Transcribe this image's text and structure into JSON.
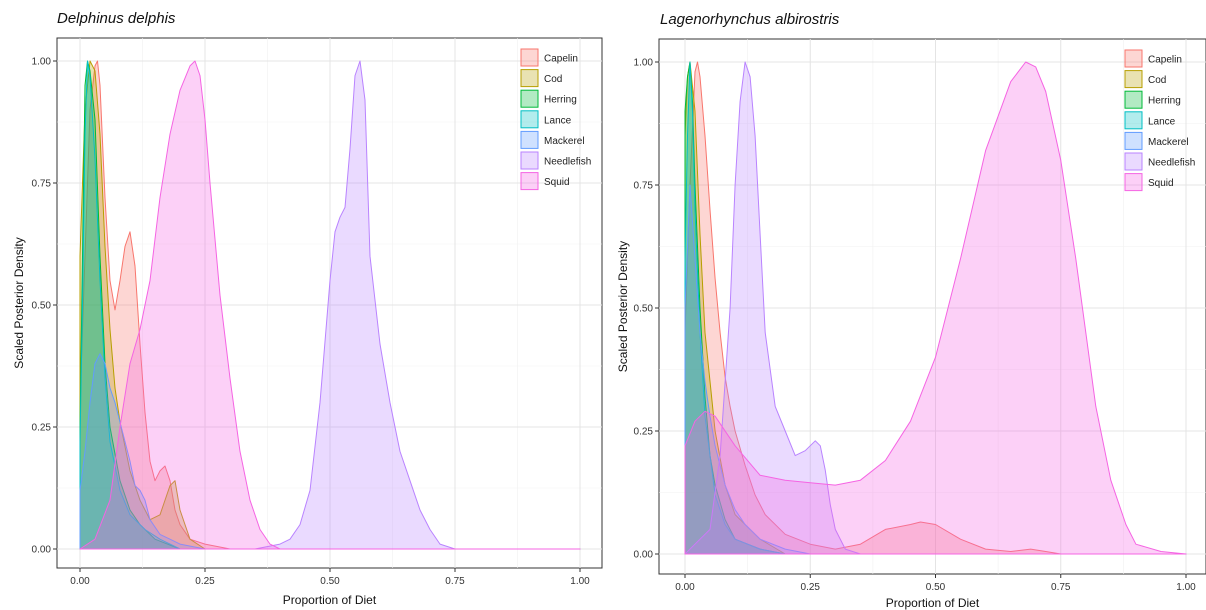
{
  "chart_data": [
    {
      "type": "area",
      "title": "Delphinus delphis",
      "xlabel": "Proportion of Diet",
      "ylabel": "Scaled Posterior Density",
      "xlim": [
        0,
        1
      ],
      "ylim": [
        0,
        1
      ],
      "xticks": [
        "0.00",
        "0.25",
        "0.50",
        "0.75",
        "1.00"
      ],
      "yticks": [
        "0.00",
        "0.25",
        "0.50",
        "0.75",
        "1.00"
      ],
      "grid": true,
      "legend": "top-right",
      "series": [
        {
          "name": "Capelin",
          "color": "#F8766D",
          "x": [
            0,
            0.01,
            0.02,
            0.03,
            0.035,
            0.04,
            0.05,
            0.06,
            0.07,
            0.08,
            0.09,
            0.1,
            0.11,
            0.12,
            0.13,
            0.14,
            0.15,
            0.16,
            0.17,
            0.18,
            0.19,
            0.2,
            0.22,
            0.25,
            0.3,
            1.0
          ],
          "y": [
            0.3,
            0.6,
            0.9,
            0.99,
            1.0,
            0.95,
            0.72,
            0.55,
            0.49,
            0.55,
            0.62,
            0.65,
            0.58,
            0.42,
            0.28,
            0.18,
            0.14,
            0.16,
            0.17,
            0.14,
            0.08,
            0.05,
            0.02,
            0.01,
            0.0,
            0.0
          ]
        },
        {
          "name": "Cod",
          "color": "#B79F00",
          "x": [
            0,
            0.01,
            0.02,
            0.03,
            0.04,
            0.05,
            0.06,
            0.07,
            0.08,
            0.1,
            0.12,
            0.14,
            0.16,
            0.18,
            0.19,
            0.2,
            0.22,
            0.25,
            1.0
          ],
          "y": [
            0.6,
            0.9,
            1.0,
            0.98,
            0.85,
            0.62,
            0.45,
            0.33,
            0.26,
            0.16,
            0.1,
            0.06,
            0.07,
            0.13,
            0.14,
            0.08,
            0.02,
            0.0,
            0.0
          ]
        },
        {
          "name": "Herring",
          "color": "#00BA38",
          "x": [
            0,
            0.005,
            0.01,
            0.015,
            0.02,
            0.03,
            0.04,
            0.05,
            0.06,
            0.08,
            0.1,
            0.12,
            0.15,
            0.2,
            1.0
          ],
          "y": [
            0.25,
            0.6,
            0.95,
            1.0,
            0.98,
            0.88,
            0.6,
            0.38,
            0.25,
            0.14,
            0.08,
            0.05,
            0.02,
            0.0,
            0.0
          ]
        },
        {
          "name": "Lance",
          "color": "#00BFC4",
          "x": [
            0,
            0.005,
            0.01,
            0.015,
            0.02,
            0.03,
            0.04,
            0.05,
            0.06,
            0.08,
            0.1,
            0.13,
            0.16,
            0.2,
            1.0
          ],
          "y": [
            0.22,
            0.5,
            0.85,
            1.0,
            0.97,
            0.8,
            0.55,
            0.35,
            0.22,
            0.12,
            0.07,
            0.04,
            0.02,
            0.0,
            0.0
          ]
        },
        {
          "name": "Mackerel",
          "color": "#619CFF",
          "x": [
            0,
            0.01,
            0.02,
            0.03,
            0.04,
            0.05,
            0.06,
            0.07,
            0.08,
            0.09,
            0.1,
            0.11,
            0.12,
            0.13,
            0.14,
            0.16,
            0.18,
            0.2,
            0.25,
            1.0
          ],
          "y": [
            0.12,
            0.2,
            0.3,
            0.38,
            0.4,
            0.38,
            0.33,
            0.3,
            0.26,
            0.22,
            0.18,
            0.13,
            0.12,
            0.1,
            0.06,
            0.03,
            0.02,
            0.01,
            0.0,
            0.0
          ]
        },
        {
          "name": "Needlefish",
          "color": "#B983FF",
          "x": [
            0,
            0.35,
            0.4,
            0.42,
            0.44,
            0.46,
            0.48,
            0.5,
            0.51,
            0.52,
            0.53,
            0.54,
            0.55,
            0.56,
            0.57,
            0.58,
            0.6,
            0.62,
            0.64,
            0.66,
            0.68,
            0.7,
            0.72,
            0.75,
            1.0
          ],
          "y": [
            0.0,
            0.0,
            0.01,
            0.02,
            0.05,
            0.12,
            0.3,
            0.55,
            0.65,
            0.68,
            0.7,
            0.82,
            0.97,
            1.0,
            0.92,
            0.6,
            0.42,
            0.3,
            0.2,
            0.14,
            0.08,
            0.04,
            0.01,
            0.0,
            0.0
          ]
        },
        {
          "name": "Squid",
          "color": "#F564E3",
          "x": [
            0,
            0.03,
            0.06,
            0.08,
            0.1,
            0.12,
            0.14,
            0.16,
            0.18,
            0.2,
            0.22,
            0.23,
            0.24,
            0.25,
            0.26,
            0.28,
            0.3,
            0.32,
            0.34,
            0.36,
            0.38,
            0.4,
            1.0
          ],
          "y": [
            0.0,
            0.02,
            0.1,
            0.25,
            0.38,
            0.45,
            0.55,
            0.72,
            0.85,
            0.94,
            0.99,
            1.0,
            0.97,
            0.88,
            0.75,
            0.52,
            0.35,
            0.2,
            0.1,
            0.04,
            0.01,
            0.0,
            0.0
          ]
        }
      ]
    },
    {
      "type": "area",
      "title": "Lagenorhynchus albirostris",
      "xlabel": "Proportion of Diet",
      "ylabel": "Scaled Posterior Density",
      "xlim": [
        0,
        1
      ],
      "ylim": [
        0,
        1
      ],
      "xticks": [
        "0.00",
        "0.25",
        "0.50",
        "0.75",
        "1.00"
      ],
      "yticks": [
        "0.00",
        "0.25",
        "0.50",
        "0.75",
        "1.00"
      ],
      "grid": true,
      "legend": "top-right",
      "series": [
        {
          "name": "Capelin",
          "color": "#F8766D",
          "x": [
            0,
            0.01,
            0.02,
            0.025,
            0.03,
            0.04,
            0.05,
            0.06,
            0.07,
            0.08,
            0.09,
            0.1,
            0.12,
            0.14,
            0.16,
            0.2,
            0.25,
            0.3,
            0.35,
            0.4,
            0.45,
            0.47,
            0.5,
            0.55,
            0.6,
            0.65,
            0.69,
            0.72,
            0.75,
            1.0
          ],
          "y": [
            0.45,
            0.75,
            0.98,
            1.0,
            0.97,
            0.85,
            0.7,
            0.56,
            0.45,
            0.36,
            0.3,
            0.25,
            0.18,
            0.12,
            0.08,
            0.04,
            0.02,
            0.01,
            0.02,
            0.05,
            0.06,
            0.065,
            0.06,
            0.03,
            0.01,
            0.005,
            0.01,
            0.005,
            0.0,
            0.0
          ]
        },
        {
          "name": "Cod",
          "color": "#B79F00",
          "x": [
            0,
            0.005,
            0.01,
            0.02,
            0.03,
            0.04,
            0.06,
            0.08,
            0.1,
            0.15,
            0.2,
            1.0
          ],
          "y": [
            0.85,
            0.97,
            1.0,
            0.9,
            0.65,
            0.45,
            0.25,
            0.14,
            0.08,
            0.03,
            0.0,
            0.0
          ]
        },
        {
          "name": "Herring",
          "color": "#00BA38",
          "x": [
            0,
            0.005,
            0.01,
            0.015,
            0.02,
            0.03,
            0.04,
            0.05,
            0.06,
            0.08,
            0.1,
            0.15,
            0.2,
            1.0
          ],
          "y": [
            0.9,
            0.97,
            1.0,
            0.92,
            0.75,
            0.5,
            0.32,
            0.2,
            0.14,
            0.07,
            0.03,
            0.01,
            0.0,
            0.0
          ]
        },
        {
          "name": "Lance",
          "color": "#00BFC4",
          "x": [
            0,
            0.005,
            0.01,
            0.015,
            0.02,
            0.03,
            0.04,
            0.06,
            0.08,
            0.1,
            0.15,
            0.2,
            1.0
          ],
          "y": [
            0.6,
            0.85,
            1.0,
            0.9,
            0.7,
            0.45,
            0.28,
            0.12,
            0.06,
            0.03,
            0.01,
            0.0,
            0.0
          ]
        },
        {
          "name": "Mackerel",
          "color": "#619CFF",
          "x": [
            0,
            0.01,
            0.02,
            0.03,
            0.04,
            0.05,
            0.06,
            0.08,
            0.1,
            0.12,
            0.15,
            0.2,
            0.25,
            1.0
          ],
          "y": [
            0.5,
            0.75,
            0.6,
            0.45,
            0.35,
            0.28,
            0.22,
            0.14,
            0.09,
            0.06,
            0.03,
            0.01,
            0.0,
            0.0
          ]
        },
        {
          "name": "Needlefish",
          "color": "#B983FF",
          "x": [
            0,
            0.05,
            0.07,
            0.09,
            0.1,
            0.11,
            0.12,
            0.13,
            0.14,
            0.15,
            0.16,
            0.18,
            0.2,
            0.22,
            0.24,
            0.26,
            0.27,
            0.28,
            0.29,
            0.3,
            0.32,
            0.35,
            1.0
          ],
          "y": [
            0.0,
            0.05,
            0.2,
            0.5,
            0.75,
            0.92,
            1.0,
            0.97,
            0.85,
            0.65,
            0.45,
            0.3,
            0.25,
            0.2,
            0.21,
            0.23,
            0.22,
            0.17,
            0.1,
            0.05,
            0.01,
            0.0,
            0.0
          ]
        },
        {
          "name": "Squid",
          "color": "#F564E3",
          "x": [
            0,
            0.02,
            0.04,
            0.06,
            0.1,
            0.15,
            0.2,
            0.25,
            0.3,
            0.35,
            0.4,
            0.45,
            0.5,
            0.55,
            0.6,
            0.65,
            0.68,
            0.7,
            0.72,
            0.75,
            0.78,
            0.8,
            0.82,
            0.85,
            0.88,
            0.9,
            0.95,
            1.0
          ],
          "y": [
            0.22,
            0.27,
            0.29,
            0.28,
            0.22,
            0.16,
            0.15,
            0.145,
            0.14,
            0.15,
            0.19,
            0.27,
            0.4,
            0.6,
            0.82,
            0.96,
            1.0,
            0.99,
            0.94,
            0.8,
            0.6,
            0.45,
            0.3,
            0.15,
            0.06,
            0.02,
            0.005,
            0.0
          ]
        }
      ]
    }
  ]
}
